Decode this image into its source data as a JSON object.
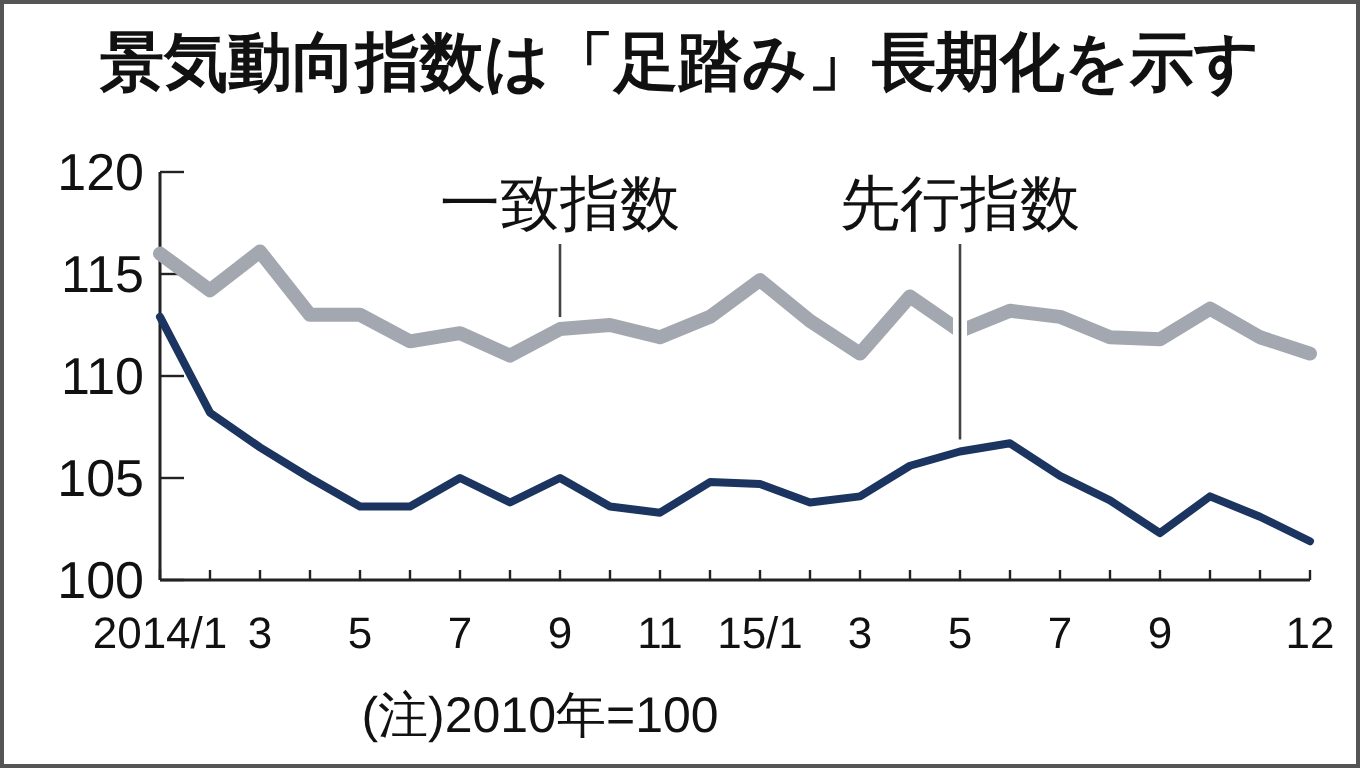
{
  "chart_data": {
    "type": "line",
    "title": "景気動向指数は「足踏み」長期化を示す",
    "x": [
      "2014-01",
      "2014-02",
      "2014-03",
      "2014-04",
      "2014-05",
      "2014-06",
      "2014-07",
      "2014-08",
      "2014-09",
      "2014-10",
      "2014-11",
      "2014-12",
      "2015-01",
      "2015-02",
      "2015-03",
      "2015-04",
      "2015-05",
      "2015-06",
      "2015-07",
      "2015-08",
      "2015-09",
      "2015-10",
      "2015-11",
      "2015-12"
    ],
    "series": [
      {
        "color": "#a3a7b0",
        "values": [
          116.0,
          114.2,
          116.1,
          113.0,
          113.0,
          111.7,
          112.1,
          111.0,
          112.3,
          112.5,
          111.9,
          112.9,
          114.7,
          112.7,
          111.1,
          113.9,
          112.2,
          113.2,
          112.9,
          111.9,
          111.8,
          113.3,
          111.9,
          111.1
        ]
      },
      {
        "color": "#1b3560",
        "values": [
          112.9,
          108.2,
          106.5,
          105.0,
          103.6,
          103.6,
          105.0,
          103.8,
          105.0,
          103.6,
          103.3,
          104.8,
          104.7,
          103.8,
          104.1,
          105.6,
          106.3,
          106.7,
          105.1,
          103.9,
          102.3,
          104.1,
          103.1,
          101.9
        ]
      }
    ],
    "xlim": [
      "2014-01",
      "2015-12"
    ],
    "xticks": [
      {
        "value": "2014-01",
        "label": "2014/1"
      },
      {
        "value": "2014-02",
        "label": null
      },
      {
        "value": "2014-03",
        "label": "3"
      },
      {
        "value": "2014-04",
        "label": null
      },
      {
        "value": "2014-05",
        "label": "5"
      },
      {
        "value": "2014-06",
        "label": null
      },
      {
        "value": "2014-07",
        "label": "7"
      },
      {
        "value": "2014-08",
        "label": null
      },
      {
        "value": "2014-09",
        "label": "9"
      },
      {
        "value": "2014-10",
        "label": null
      },
      {
        "value": "2014-11",
        "label": "11"
      },
      {
        "value": "2014-12",
        "label": null
      },
      {
        "value": "2015-01",
        "label": "15/1"
      },
      {
        "value": "2015-02",
        "label": null
      },
      {
        "value": "2015-03",
        "label": "3"
      },
      {
        "value": "2015-04",
        "label": null
      },
      {
        "value": "2015-05",
        "label": "5"
      },
      {
        "value": "2015-06",
        "label": null
      },
      {
        "value": "2015-07",
        "label": "7"
      },
      {
        "value": "2015-08",
        "label": null
      },
      {
        "value": "2015-09",
        "label": "9"
      },
      {
        "value": "2015-10",
        "label": null
      },
      {
        "value": "2015-11",
        "label": null
      },
      {
        "value": "2015-12",
        "label": "12"
      }
    ],
    "ylim": [
      100,
      120
    ],
    "yticks": [
      100,
      105,
      110,
      115,
      120
    ],
    "grid": false,
    "annotations": [
      {
        "text": "一致指数",
        "x": "2014-09",
        "y": 112.3
      },
      {
        "text": "先行指数",
        "x": "2015-05",
        "y": 106.3
      },
      "(注)2010年=100"
    ]
  }
}
